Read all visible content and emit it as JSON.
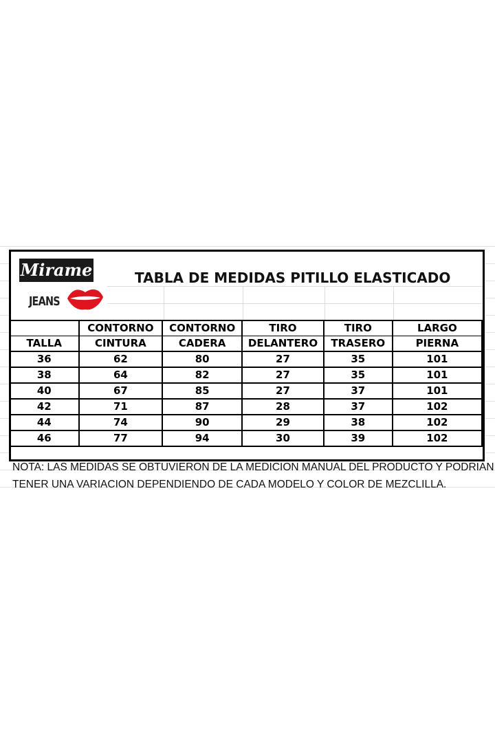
{
  "logo": {
    "brand": "Mirame",
    "sub": "JEANS",
    "accent": "#e0141e"
  },
  "title": "TABLA DE MEDIDAS PITILLO ELASTICADO",
  "header": {
    "row1": [
      "",
      "CONTORNO",
      "CONTORNO",
      "TIRO",
      "TIRO",
      "LARGO"
    ],
    "row2": [
      "TALLA",
      "CINTURA",
      "CADERA",
      "DELANTERO",
      "TRASERO",
      "PIERNA"
    ]
  },
  "rows": [
    [
      "36",
      "62",
      "80",
      "27",
      "35",
      "101"
    ],
    [
      "38",
      "64",
      "82",
      "27",
      "35",
      "101"
    ],
    [
      "40",
      "67",
      "85",
      "27",
      "37",
      "101"
    ],
    [
      "42",
      "71",
      "87",
      "28",
      "37",
      "102"
    ],
    [
      "44",
      "74",
      "90",
      "29",
      "38",
      "102"
    ],
    [
      "46",
      "77",
      "94",
      "30",
      "39",
      "102"
    ]
  ],
  "note": [
    "NOTA: LAS MEDIDAS SE OBTUVIERON DE LA MEDICION MANUAL DEL PRODUCTO Y PODRIAN",
    "TENER UNA VARIACION DEPENDIENDO DE CADA MODELO Y COLOR DE MEZCLILLA."
  ]
}
